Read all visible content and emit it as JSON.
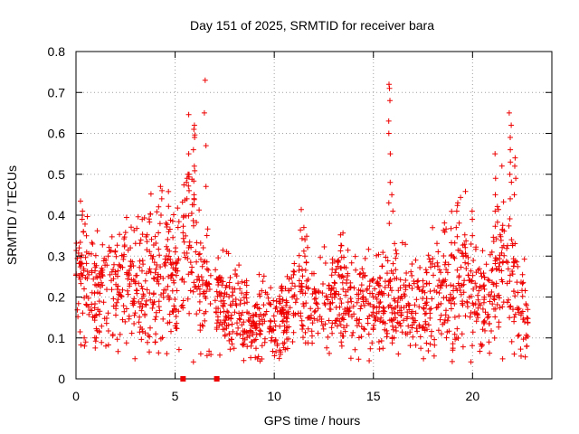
{
  "chart_data": {
    "type": "scatter",
    "title": "Day 151 of 2025, SRMTID for receiver bara",
    "xlabel": "GPS time / hours",
    "ylabel": "SRMTID / TECUs",
    "xlim": [
      0,
      24
    ],
    "ylim": [
      0,
      0.8
    ],
    "xticks": [
      0,
      5,
      10,
      15,
      20
    ],
    "yticks": [
      0,
      0.1,
      0.2,
      0.3,
      0.4,
      0.5,
      0.6,
      0.7,
      0.8
    ],
    "grid": true,
    "marker": "+",
    "color": "#ee0000",
    "trend": [
      [
        0.0,
        0.24
      ],
      [
        0.5,
        0.26
      ],
      [
        1.0,
        0.22
      ],
      [
        1.5,
        0.21
      ],
      [
        2.0,
        0.23
      ],
      [
        2.5,
        0.24
      ],
      [
        3.0,
        0.25
      ],
      [
        3.5,
        0.24
      ],
      [
        4.0,
        0.26
      ],
      [
        4.5,
        0.27
      ],
      [
        5.0,
        0.24
      ],
      [
        5.5,
        0.32
      ],
      [
        5.8,
        0.36
      ],
      [
        6.2,
        0.24
      ],
      [
        6.6,
        0.22
      ],
      [
        7.0,
        0.2
      ],
      [
        7.5,
        0.18
      ],
      [
        8.0,
        0.17
      ],
      [
        8.5,
        0.15
      ],
      [
        9.0,
        0.14
      ],
      [
        9.5,
        0.15
      ],
      [
        10.0,
        0.13
      ],
      [
        10.5,
        0.14
      ],
      [
        11.0,
        0.19
      ],
      [
        11.5,
        0.22
      ],
      [
        12.0,
        0.19
      ],
      [
        12.5,
        0.18
      ],
      [
        13.0,
        0.2
      ],
      [
        13.5,
        0.21
      ],
      [
        14.0,
        0.19
      ],
      [
        14.5,
        0.2
      ],
      [
        15.0,
        0.18
      ],
      [
        15.5,
        0.2
      ],
      [
        16.0,
        0.19
      ],
      [
        16.5,
        0.17
      ],
      [
        17.0,
        0.18
      ],
      [
        17.5,
        0.19
      ],
      [
        18.0,
        0.2
      ],
      [
        18.5,
        0.23
      ],
      [
        19.0,
        0.27
      ],
      [
        19.5,
        0.25
      ],
      [
        20.0,
        0.21
      ],
      [
        20.5,
        0.19
      ],
      [
        21.0,
        0.22
      ],
      [
        21.5,
        0.3
      ],
      [
        22.0,
        0.27
      ],
      [
        22.5,
        0.18
      ],
      [
        22.8,
        0.14
      ]
    ],
    "spikes": [
      {
        "x": 0.35,
        "values": [
          0.36,
          0.39,
          0.41,
          0.4
        ]
      },
      {
        "x": 4.3,
        "values": [
          0.4,
          0.44,
          0.47,
          0.46
        ]
      },
      {
        "x": 5.6,
        "values": [
          0.44,
          0.48,
          0.5,
          0.49
        ]
      },
      {
        "x": 5.95,
        "values": [
          0.45,
          0.52,
          0.56,
          0.59,
          0.61,
          0.62
        ]
      },
      {
        "x": 6.5,
        "values": [
          0.47,
          0.57,
          0.65,
          0.73
        ]
      },
      {
        "x": 11.5,
        "values": [
          0.3,
          0.34,
          0.37
        ]
      },
      {
        "x": 15.8,
        "values": [
          0.38,
          0.43,
          0.48,
          0.55,
          0.6,
          0.63,
          0.68,
          0.71,
          0.72
        ]
      },
      {
        "x": 15.95,
        "values": [
          0.41,
          0.45
        ]
      },
      {
        "x": 19.2,
        "values": [
          0.37,
          0.41,
          0.43
        ]
      },
      {
        "x": 20.0,
        "values": [
          0.35,
          0.39,
          0.41
        ]
      },
      {
        "x": 21.15,
        "values": [
          0.41,
          0.45,
          0.49,
          0.55
        ]
      },
      {
        "x": 21.9,
        "values": [
          0.44,
          0.5,
          0.53,
          0.56,
          0.59,
          0.62,
          0.65
        ]
      },
      {
        "x": 22.15,
        "values": [
          0.45,
          0.49,
          0.52,
          0.54
        ]
      }
    ],
    "dropouts": [
      {
        "x": 0.45,
        "values": [
          0.08,
          0.09,
          0.1
        ]
      },
      {
        "x": 4.0,
        "values": [
          0.09,
          0.11
        ]
      },
      {
        "x": 8.8,
        "values": [
          0.08,
          0.09
        ]
      },
      {
        "x": 10.3,
        "values": [
          0.05,
          0.06,
          0.07
        ]
      },
      {
        "x": 13.4,
        "values": [
          0.08,
          0.09
        ]
      },
      {
        "x": 19.0,
        "values": [
          0.07,
          0.075
        ]
      },
      {
        "x": 20.8,
        "values": [
          0.09
        ]
      },
      {
        "x": 22.7,
        "values": [
          0.08,
          0.1
        ]
      }
    ],
    "gaps": [
      [
        5.2,
        5.3
      ],
      [
        6.85,
        7.0
      ]
    ],
    "baseline_markers": [
      5.4,
      7.1
    ]
  }
}
